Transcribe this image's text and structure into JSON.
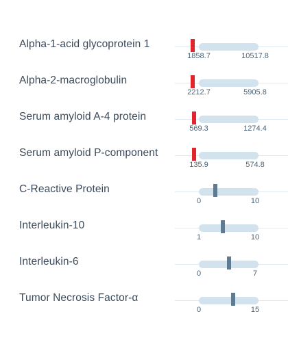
{
  "colors": {
    "out_of_range_marker": "#e0252c",
    "in_range_marker": "#5d7b93",
    "range_track": "#d3e3ee",
    "label_text": "#3b4a5a"
  },
  "rows": [
    {
      "label": "Alpha-1-acid glycoprotein 1",
      "min_label": "1858.7",
      "max_label": "10517.8",
      "marker_position": -0.1,
      "status": "out-of-range"
    },
    {
      "label": "Alpha-2-macroglobulin",
      "min_label": "2212.7",
      "max_label": "5905.8",
      "marker_position": -0.1,
      "status": "out-of-range"
    },
    {
      "label": "Serum amyloid A-4 protein",
      "min_label": "569.3",
      "max_label": "1274.4",
      "marker_position": -0.08,
      "status": "out-of-range"
    },
    {
      "label": "Serum amyloid P-component",
      "min_label": "135.9",
      "max_label": "574.8",
      "marker_position": -0.08,
      "status": "out-of-range"
    },
    {
      "label": "C-Reactive Protein",
      "min_label": "0",
      "max_label": "10",
      "marker_position": 0.28,
      "status": "in-range"
    },
    {
      "label": "Interleukin-10",
      "min_label": "1",
      "max_label": "10",
      "marker_position": 0.4,
      "status": "in-range"
    },
    {
      "label": "Interleukin-6",
      "min_label": "0",
      "max_label": "7",
      "marker_position": 0.5,
      "status": "in-range"
    },
    {
      "label": "Tumor Necrosis Factor-α",
      "min_label": "0",
      "max_label": "15",
      "marker_position": 0.57,
      "status": "in-range"
    }
  ]
}
